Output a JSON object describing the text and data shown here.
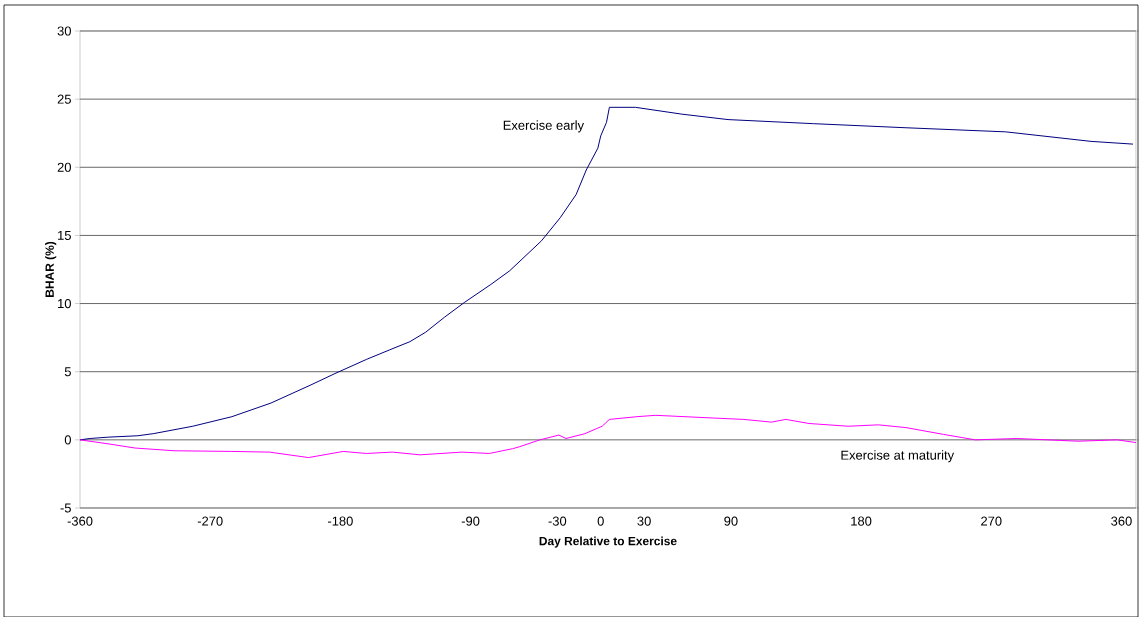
{
  "chart_data": {
    "type": "line",
    "xlabel": "Day Relative to Exercise",
    "ylabel": "BHAR (%)",
    "xlim": [
      -360,
      370
    ],
    "ylim": [
      -5,
      30
    ],
    "xticks": [
      -360,
      -270,
      -180,
      -90,
      -30,
      0,
      30,
      90,
      180,
      270,
      360
    ],
    "yticks": [
      -5,
      0,
      5,
      10,
      15,
      20,
      25,
      30
    ],
    "grid": "y",
    "legend": false,
    "marker": "none",
    "line_style": "solid",
    "series": [
      {
        "name": "Exercise early",
        "color": "#000080",
        "x": [
          -360,
          -353,
          -340,
          -320,
          -309,
          -282,
          -255,
          -228,
          -201,
          -183,
          -162,
          -146,
          -132,
          -121,
          -108,
          -94,
          -76,
          -63,
          -52,
          -41,
          -28,
          -17,
          -10,
          -2,
          0,
          4,
          6,
          24,
          56,
          88,
          147,
          211,
          280,
          339,
          368
        ],
        "values": [
          0,
          0.1,
          0.2,
          0.3,
          0.46,
          1.0,
          1.7,
          2.7,
          4.0,
          4.9,
          5.9,
          6.6,
          7.2,
          7.9,
          9.0,
          10.1,
          11.4,
          12.4,
          13.5,
          14.6,
          16.3,
          18.0,
          19.8,
          21.4,
          22.3,
          23.3,
          24.4,
          24.4,
          23.9,
          23.5,
          23.2,
          22.9,
          22.6,
          21.9,
          21.7
        ]
      },
      {
        "name": "Exercise at maturity",
        "color": "#ff00ff",
        "x": [
          -360,
          -340,
          -322,
          -295,
          -255,
          -229,
          -202,
          -178,
          -162,
          -144,
          -125,
          -96,
          -77,
          -61,
          -56,
          -42,
          -29,
          -24,
          -11,
          1,
          6,
          25,
          38,
          78,
          99,
          118,
          128,
          144,
          171,
          192,
          211,
          237,
          259,
          288,
          330,
          357,
          370
        ],
        "values": [
          0,
          -0.3,
          -0.6,
          -0.8,
          -0.85,
          -0.9,
          -1.3,
          -0.85,
          -1.0,
          -0.9,
          -1.1,
          -0.9,
          -1.0,
          -0.65,
          -0.5,
          0,
          0.35,
          0.1,
          0.45,
          1.0,
          1.5,
          1.7,
          1.8,
          1.6,
          1.5,
          1.3,
          1.5,
          1.2,
          1.0,
          1.1,
          0.9,
          0.4,
          0,
          0.1,
          -0.1,
          0,
          -0.2
        ]
      }
    ]
  }
}
